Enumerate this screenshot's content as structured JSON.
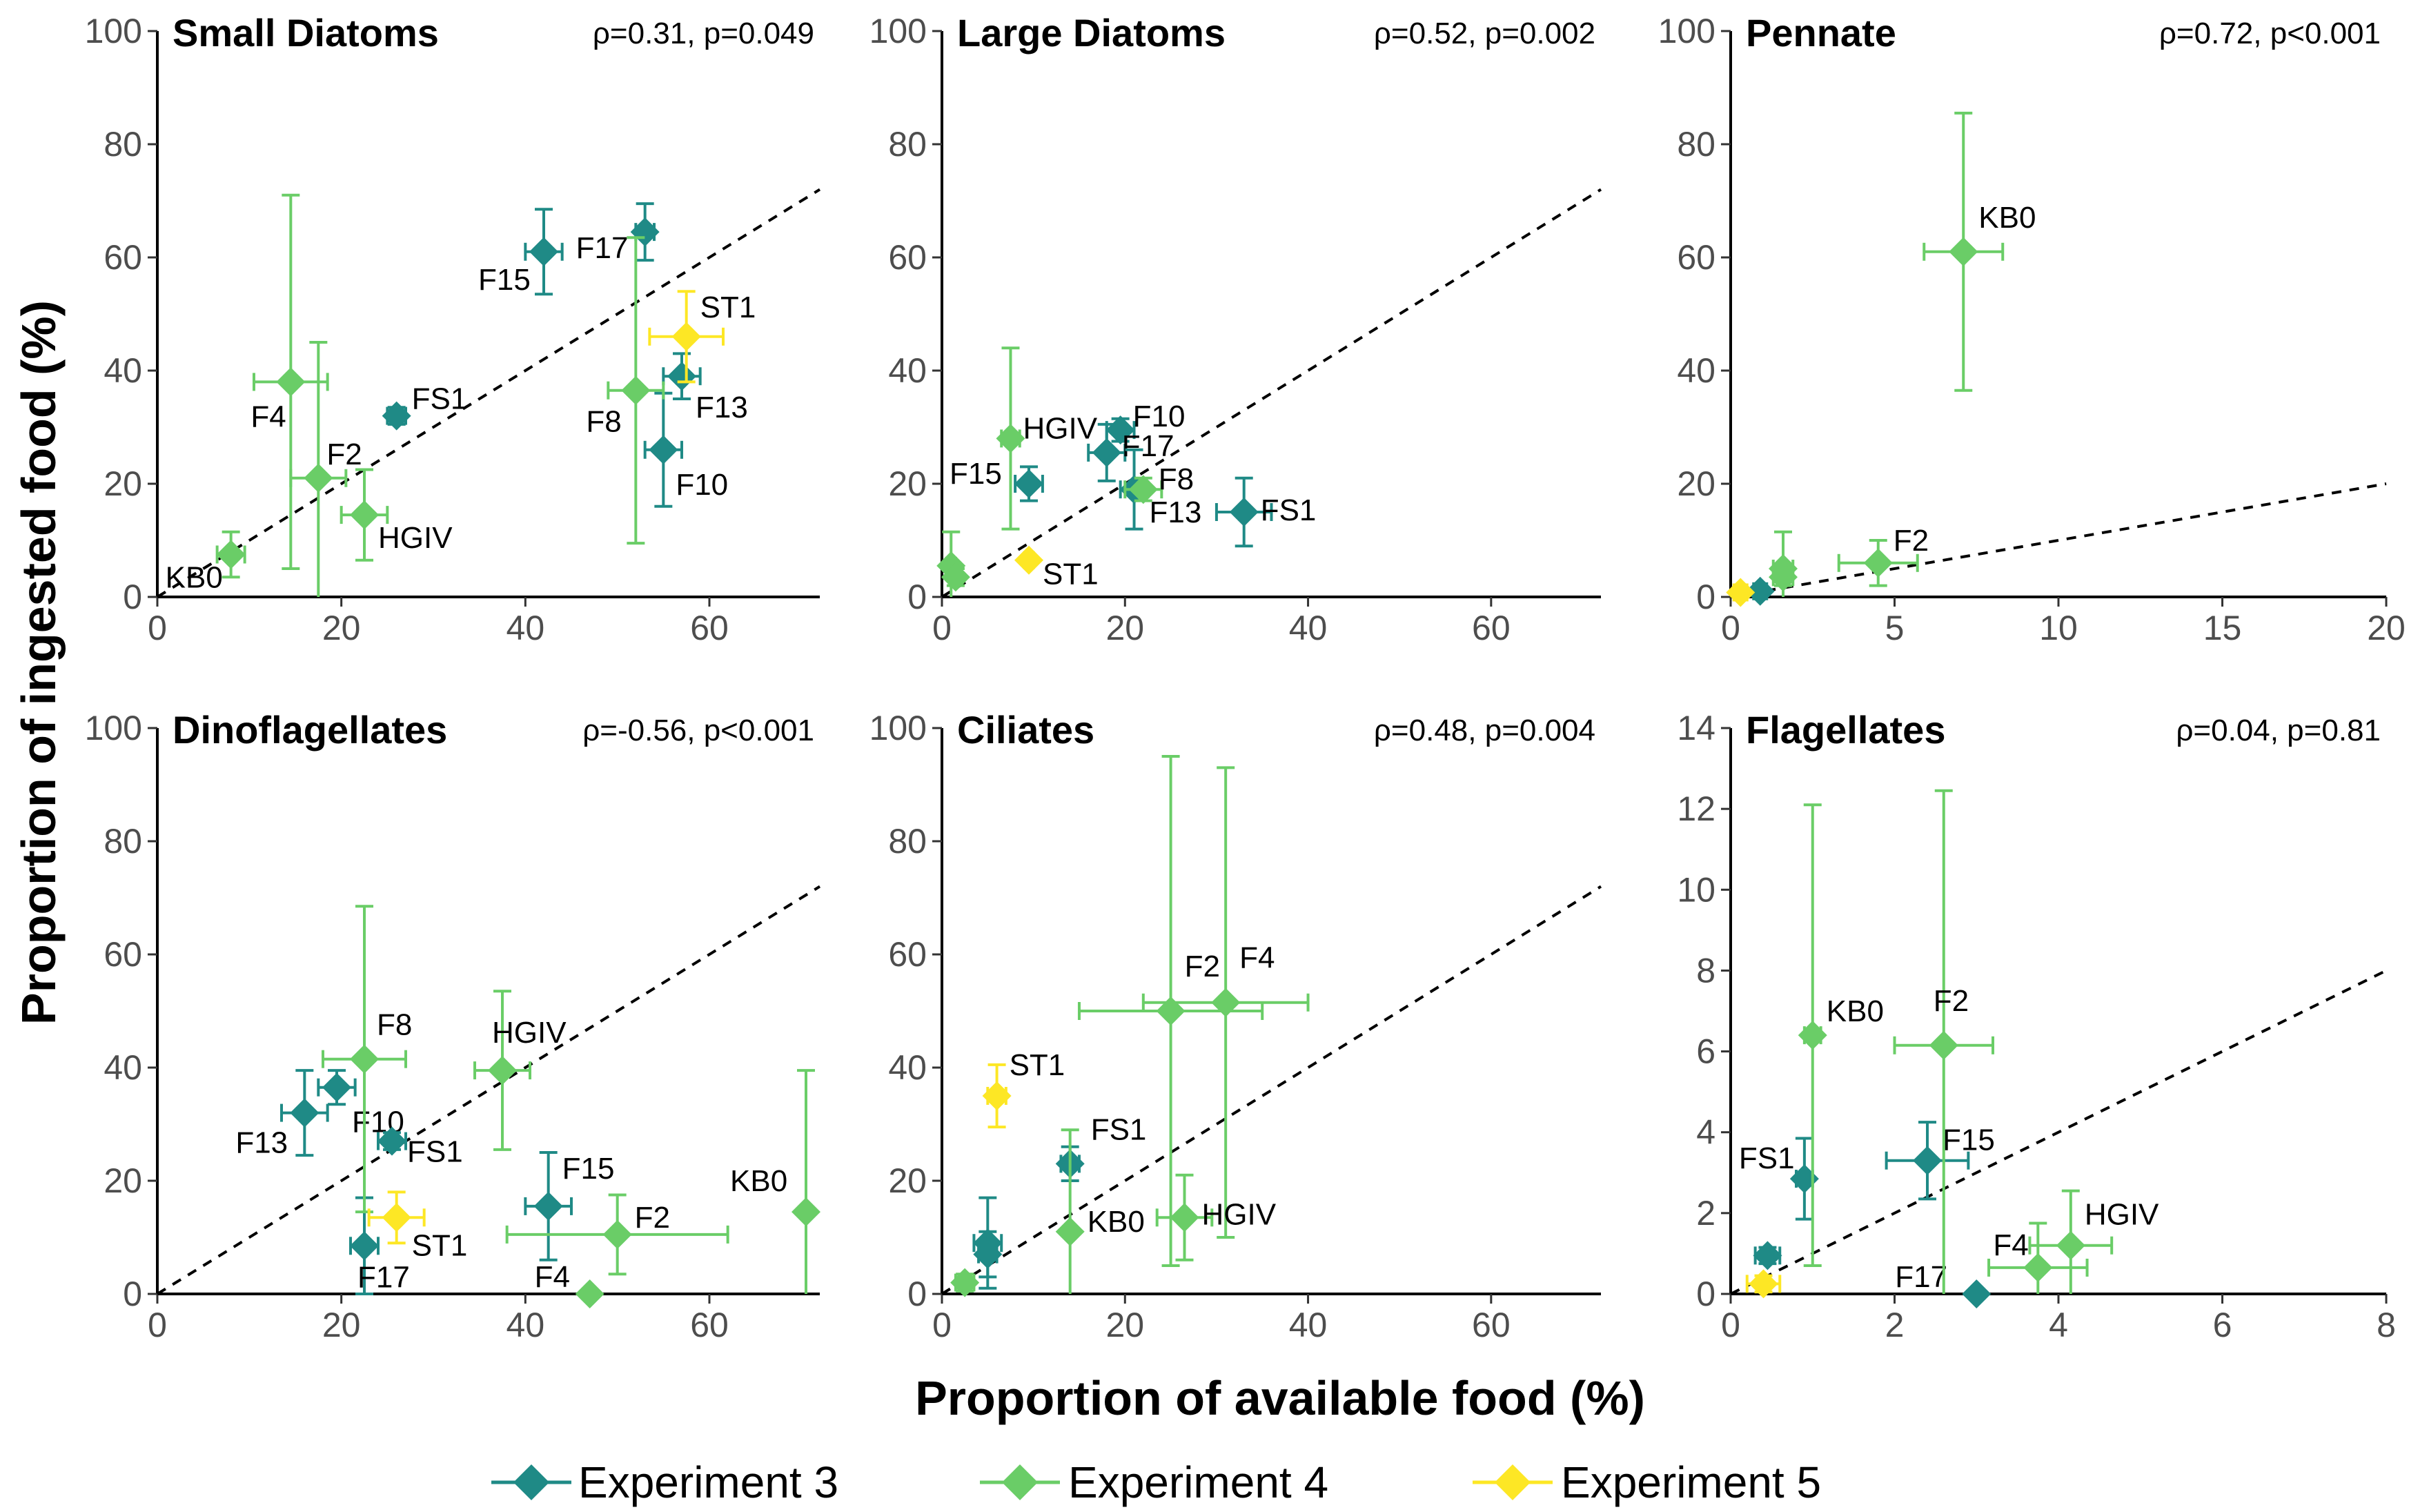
{
  "chart_data": {
    "type": "scatter",
    "xlabel": "Proportion of available food (%)",
    "ylabel": "Proportion of ingested food (%)",
    "legend_position": "bottom",
    "series": [
      {
        "name": "Experiment 3",
        "color": "#1f8a86"
      },
      {
        "name": "Experiment 4",
        "color": "#6acd67"
      },
      {
        "name": "Experiment 5",
        "color": "#fde725"
      }
    ],
    "panels": [
      {
        "title": "Small Diatoms",
        "stats": "ρ=0.31, p=0.049",
        "xlim": [
          0,
          72
        ],
        "ylim": [
          0,
          100
        ],
        "xticks": [
          0,
          20,
          40,
          60
        ],
        "yticks": [
          0,
          20,
          40,
          60,
          80,
          100
        ],
        "ref_slope": 1,
        "points": [
          {
            "label": "F15",
            "series": 0,
            "x": 42,
            "y": 61,
            "xerr": 2,
            "yerr": 7.5
          },
          {
            "label": "F17",
            "series": 0,
            "x": 53,
            "y": 64.5,
            "xerr": 1,
            "yerr": 5
          },
          {
            "label": "FS1",
            "series": 0,
            "x": 26,
            "y": 32,
            "xerr": 1,
            "yerr": 1.5
          },
          {
            "label": "F13",
            "series": 0,
            "x": 57,
            "y": 39,
            "xerr": 2,
            "yerr": 4
          },
          {
            "label": "F10",
            "series": 0,
            "x": 55,
            "y": 26,
            "xerr": 2,
            "yerr": 10
          },
          {
            "label": "F4",
            "series": 1,
            "x": 14.5,
            "y": 38,
            "xerr": 4,
            "yerr": 33
          },
          {
            "label": "F2",
            "series": 1,
            "x": 17.5,
            "y": 21,
            "xerr": 3,
            "yerr": 24
          },
          {
            "label": "HGIV",
            "series": 1,
            "x": 22.5,
            "y": 14.5,
            "xerr": 2.5,
            "yerr": 8
          },
          {
            "label": "F8",
            "series": 1,
            "x": 52,
            "y": 36.5,
            "xerr": 3,
            "yerr": 27
          },
          {
            "label": "KB0",
            "series": 1,
            "x": 8,
            "y": 7.5,
            "xerr": 1.5,
            "yerr": 4
          },
          {
            "label": "ST1",
            "series": 2,
            "x": 57.5,
            "y": 46,
            "xerr": 4,
            "yerr": 8
          }
        ]
      },
      {
        "title": "Large Diatoms",
        "stats": "ρ=0.52, p=0.002",
        "xlim": [
          0,
          72
        ],
        "ylim": [
          0,
          100
        ],
        "xticks": [
          0,
          20,
          40,
          60
        ],
        "yticks": [
          0,
          20,
          40,
          60,
          80,
          100
        ],
        "ref_slope": 1,
        "points": [
          {
            "label": "F10",
            "series": 0,
            "x": 19.5,
            "y": 29.5,
            "xerr": 1.5,
            "yerr": 2
          },
          {
            "label": "F17",
            "series": 0,
            "x": 18,
            "y": 25.5,
            "xerr": 2,
            "yerr": 5
          },
          {
            "label": "F15",
            "series": 0,
            "x": 9.5,
            "y": 20,
            "xerr": 1.5,
            "yerr": 3
          },
          {
            "label": "F13",
            "series": 0,
            "x": 21,
            "y": 19,
            "xerr": 1.5,
            "yerr": 7
          },
          {
            "label": "FS1",
            "series": 0,
            "x": 33,
            "y": 15,
            "xerr": 3,
            "yerr": 6
          },
          {
            "label": "HGIV",
            "series": 1,
            "x": 7.5,
            "y": 28,
            "xerr": 1,
            "yerr": 16
          },
          {
            "label": "F8",
            "series": 1,
            "x": 22,
            "y": 19,
            "xerr": 2,
            "yerr": 2
          },
          {
            "label": "",
            "series": 1,
            "x": 1,
            "y": 5.5,
            "xerr": 0.5,
            "yerr": 6
          },
          {
            "label": "",
            "series": 1,
            "x": 1.5,
            "y": 3.5,
            "xerr": 0.5,
            "yerr": 1.5
          },
          {
            "label": "ST1",
            "series": 2,
            "x": 9.5,
            "y": 6.5,
            "xerr": 0.5,
            "yerr": 0.5
          }
        ]
      },
      {
        "title": "Pennate",
        "stats": "ρ=0.72, p<0.001",
        "xlim": [
          0,
          20
        ],
        "ylim": [
          0,
          100
        ],
        "xticks": [
          0,
          5,
          10,
          15,
          20
        ],
        "yticks": [
          0,
          20,
          40,
          60,
          80,
          100
        ],
        "ref_slope": 1,
        "points": [
          {
            "label": "",
            "series": 0,
            "x": 0.9,
            "y": 1,
            "xerr": 0.2,
            "yerr": 0.5
          },
          {
            "label": "KB0",
            "series": 1,
            "x": 7.1,
            "y": 61,
            "xerr": 1.2,
            "yerr": 24.5
          },
          {
            "label": "F2",
            "series": 1,
            "x": 4.5,
            "y": 6,
            "xerr": 1.2,
            "yerr": 4
          },
          {
            "label": "",
            "series": 1,
            "x": 1.6,
            "y": 5,
            "xerr": 0.3,
            "yerr": 6.5
          },
          {
            "label": "",
            "series": 1,
            "x": 1.6,
            "y": 3.5,
            "xerr": 0.3,
            "yerr": 1.5
          },
          {
            "label": "",
            "series": 2,
            "x": 0.3,
            "y": 0.8,
            "xerr": 0.2,
            "yerr": 0.3
          }
        ]
      },
      {
        "title": "Dinoflagellates",
        "stats": "ρ=-0.56, p<0.001",
        "xlim": [
          0,
          72
        ],
        "ylim": [
          0,
          100
        ],
        "xticks": [
          0,
          20,
          40,
          60
        ],
        "yticks": [
          0,
          20,
          40,
          60,
          80,
          100
        ],
        "ref_slope": 1,
        "points": [
          {
            "label": "F10",
            "series": 0,
            "x": 19.5,
            "y": 36.5,
            "xerr": 2,
            "yerr": 3
          },
          {
            "label": "F13",
            "series": 0,
            "x": 16,
            "y": 32,
            "xerr": 2.5,
            "yerr": 7.5
          },
          {
            "label": "FS1",
            "series": 0,
            "x": 25.5,
            "y": 27,
            "xerr": 1.5,
            "yerr": 1.5
          },
          {
            "label": "F15",
            "series": 0,
            "x": 42.5,
            "y": 15.5,
            "xerr": 2.5,
            "yerr": 9.5
          },
          {
            "label": "F17",
            "series": 0,
            "x": 22.5,
            "y": 8.5,
            "xerr": 1.5,
            "yerr": 8.5
          },
          {
            "label": "F8",
            "series": 1,
            "x": 22.5,
            "y": 41.5,
            "xerr": 4.5,
            "yerr": 27
          },
          {
            "label": "HGIV",
            "series": 1,
            "x": 37.5,
            "y": 39.5,
            "xerr": 3,
            "yerr": 14
          },
          {
            "label": "F2",
            "series": 1,
            "x": 50,
            "y": 10.5,
            "xerr": 12,
            "yerr": 7
          },
          {
            "label": "KB0",
            "series": 1,
            "x": 70.5,
            "y": 14.5,
            "xerr": 0,
            "yerr": 25
          },
          {
            "label": "F4",
            "series": 1,
            "x": 47,
            "y": 0,
            "xerr": 0,
            "yerr": 0
          },
          {
            "label": "ST1",
            "series": 2,
            "x": 26,
            "y": 13.5,
            "xerr": 3,
            "yerr": 4.5
          }
        ]
      },
      {
        "title": "Ciliates",
        "stats": "ρ=0.48, p=0.004",
        "xlim": [
          0,
          72
        ],
        "ylim": [
          0,
          100
        ],
        "xticks": [
          0,
          20,
          40,
          60
        ],
        "yticks": [
          0,
          20,
          40,
          60,
          80,
          100
        ],
        "ref_slope": 1,
        "points": [
          {
            "label": "FS1",
            "series": 0,
            "x": 14,
            "y": 23,
            "xerr": 1,
            "yerr": 3
          },
          {
            "label": "",
            "series": 0,
            "x": 5,
            "y": 9,
            "xerr": 1.5,
            "yerr": 8
          },
          {
            "label": "",
            "series": 0,
            "x": 5,
            "y": 7,
            "xerr": 1,
            "yerr": 4
          },
          {
            "label": "F2",
            "series": 1,
            "x": 25,
            "y": 50,
            "xerr": 10,
            "yerr": 45
          },
          {
            "label": "F4",
            "series": 1,
            "x": 31,
            "y": 51.5,
            "xerr": 9,
            "yerr": 41.5
          },
          {
            "label": "HGIV",
            "series": 1,
            "x": 26.5,
            "y": 13.5,
            "xerr": 3,
            "yerr": 7.5
          },
          {
            "label": "KB0",
            "series": 1,
            "x": 14,
            "y": 11,
            "xerr": 0,
            "yerr": 18
          },
          {
            "label": "",
            "series": 1,
            "x": 2.5,
            "y": 2,
            "xerr": 1,
            "yerr": 1.5
          },
          {
            "label": "ST1",
            "series": 2,
            "x": 6,
            "y": 35,
            "xerr": 1,
            "yerr": 5.5
          }
        ]
      },
      {
        "title": "Flagellates",
        "stats": "ρ=0.04, p=0.81",
        "xlim": [
          0,
          8
        ],
        "ylim": [
          0,
          14
        ],
        "xticks": [
          0,
          2,
          4,
          6,
          8
        ],
        "yticks": [
          0,
          2,
          4,
          6,
          8,
          10,
          12,
          14
        ],
        "ref_slope": 1,
        "points": [
          {
            "label": "FS1",
            "series": 0,
            "x": 0.9,
            "y": 2.85,
            "xerr": 0.1,
            "yerr": 1
          },
          {
            "label": "F15",
            "series": 0,
            "x": 2.4,
            "y": 3.3,
            "xerr": 0.5,
            "yerr": 0.95
          },
          {
            "label": "F17",
            "series": 0,
            "x": 3,
            "y": 0,
            "xerr": 0,
            "yerr": 0
          },
          {
            "label": "",
            "series": 0,
            "x": 0.45,
            "y": 0.95,
            "xerr": 0.15,
            "yerr": 0.2
          },
          {
            "label": "KB0",
            "series": 1,
            "x": 1,
            "y": 6.4,
            "xerr": 0.1,
            "yerr": 5.7
          },
          {
            "label": "F2",
            "series": 1,
            "x": 2.6,
            "y": 6.15,
            "xerr": 0.6,
            "yerr": 6.3
          },
          {
            "label": "F4",
            "series": 1,
            "x": 3.75,
            "y": 0.65,
            "xerr": 0.6,
            "yerr": 1.1
          },
          {
            "label": "HGIV",
            "series": 1,
            "x": 4.15,
            "y": 1.2,
            "xerr": 0.5,
            "yerr": 1.35
          },
          {
            "label": "",
            "series": 2,
            "x": 0.4,
            "y": 0.25,
            "xerr": 0.2,
            "yerr": 0.2
          }
        ]
      }
    ]
  }
}
